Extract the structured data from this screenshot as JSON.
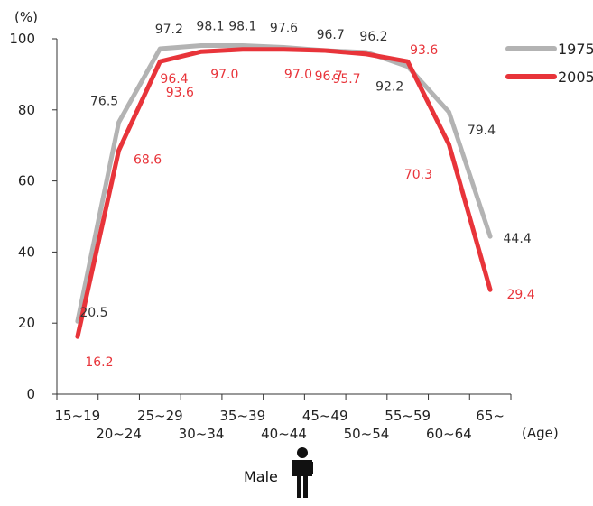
{
  "chart_data": {
    "type": "line",
    "title": "",
    "ylabel": "(%)",
    "xlabel": "(Age)",
    "ylim": [
      0,
      100
    ],
    "yticks": [
      0,
      20,
      40,
      60,
      80,
      100
    ],
    "categories": [
      "15-19",
      "20-24",
      "25-29",
      "30-34",
      "35-39",
      "40-44",
      "45-49",
      "50-54",
      "55-59",
      "60-64",
      "65-"
    ],
    "category_labels": [
      "15~19",
      "20~24",
      "25~29",
      "30~34",
      "35~39",
      "40~44",
      "45~49",
      "50~54",
      "55~59",
      "60~64",
      "65~"
    ],
    "series": [
      {
        "name": "1975",
        "color": "#b3b3b3",
        "values": [
          20.5,
          76.5,
          97.2,
          98.1,
          98.1,
          97.6,
          96.7,
          96.2,
          92.2,
          79.4,
          44.4
        ],
        "labels": [
          "20.5",
          "76.5",
          "97.2",
          "98.1",
          "98.1",
          "97.6",
          "96.7",
          "96.2",
          "92.2",
          "79.4",
          "44.4"
        ]
      },
      {
        "name": "2005",
        "color": "#e8343a",
        "values": [
          16.2,
          68.6,
          93.6,
          96.4,
          97.0,
          97.0,
          96.7,
          95.7,
          93.6,
          70.3,
          29.4
        ],
        "labels": [
          "16.2",
          "68.6",
          "93.6",
          "96.4",
          "97.0",
          "97.0",
          "96.7",
          "95.7",
          "93.6",
          "70.3",
          "29.4"
        ]
      }
    ],
    "label_colors": {
      "1975": "#333333",
      "2005": "#e8343a"
    },
    "grid": false,
    "legend": "top-right"
  },
  "caption": {
    "text": "Male",
    "icon": "male-person-icon"
  }
}
